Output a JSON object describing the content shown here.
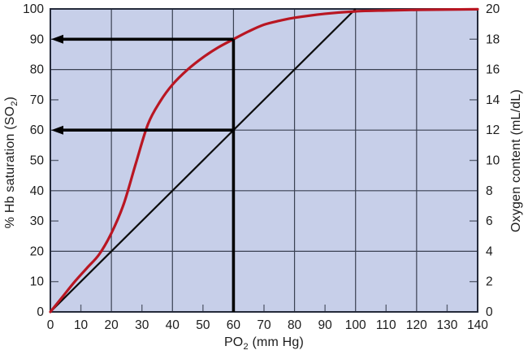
{
  "axes": {
    "x": {
      "title_pre": "PO",
      "title_sub": "2",
      "title_post": " (mm Hg)"
    },
    "left": {
      "title_pre": "% Hb saturation (SO",
      "title_sub": "2",
      "title_post": ")"
    },
    "right": {
      "title_pre": "Oxygen content (mL/dL)",
      "title_sub": "",
      "title_post": ""
    }
  },
  "colors": {
    "plot_bg": "#c7cfe9",
    "grid_major": "#3a4152",
    "frame": "#242a3a",
    "minor_tick": "#5c6375",
    "curve_red": "#b91622",
    "reference_black": "#0c0c0c",
    "annotation_black": "#000000",
    "text": "#1b1b1b"
  },
  "chart_data": {
    "type": "line",
    "title": "",
    "xlabel": "PO2 (mm Hg)",
    "ylabel_left": "% Hb saturation (SO2)",
    "ylabel_right": "Oxygen content (mL/dL)",
    "x_range": [
      0,
      140
    ],
    "y_left_range": [
      0,
      100
    ],
    "y_right_range": [
      0,
      20
    ],
    "grid_on": true,
    "legend": "none",
    "x_ticks": [
      0,
      10,
      20,
      30,
      40,
      50,
      60,
      70,
      80,
      90,
      100,
      110,
      120,
      130,
      140
    ],
    "y_left_ticks": [
      0,
      10,
      20,
      30,
      40,
      50,
      60,
      70,
      80,
      90,
      100
    ],
    "y_right_ticks": [
      0,
      2,
      4,
      6,
      8,
      10,
      12,
      14,
      16,
      18,
      20
    ],
    "grid": {
      "x_major": [
        20,
        40,
        60,
        80,
        100,
        120
      ],
      "y_major_pct": [
        20,
        40,
        60,
        80
      ],
      "x_minor_ticks": [
        10,
        30,
        50,
        70,
        90,
        110,
        130
      ],
      "y_left_minor_ticks_pct": [
        10,
        30,
        50,
        70,
        90
      ],
      "y_right_minor_ticks_units": [
        2,
        6,
        10,
        14,
        18
      ]
    },
    "series": [
      {
        "name": "oxyhemoglobin-dissociation-curve",
        "color": "#b91622",
        "x": [
          0,
          4,
          8,
          12,
          16,
          20,
          24,
          28,
          32,
          36,
          40,
          45,
          50,
          55,
          60,
          65,
          70,
          75,
          80,
          90,
          100,
          110,
          120,
          130,
          140
        ],
        "y": [
          0,
          5,
          10,
          14.5,
          19,
          26,
          35.5,
          49,
          62,
          69.5,
          75,
          80,
          84,
          87.3,
          90,
          92.6,
          94.8,
          96.1,
          97.1,
          98.4,
          99.2,
          99.5,
          99.7,
          99.8,
          99.9
        ]
      },
      {
        "name": "linear-reference-line",
        "color": "#0c0c0c",
        "x": [
          0,
          100
        ],
        "y": [
          0,
          100
        ]
      }
    ],
    "annotations": {
      "vertical_line": {
        "x": 60,
        "y_from": 0,
        "y_to": 90
      },
      "arrows": [
        {
          "y": 90,
          "x_from": 60,
          "x_to": 0
        },
        {
          "y": 60,
          "x_from": 60,
          "x_to": 0
        }
      ]
    }
  }
}
